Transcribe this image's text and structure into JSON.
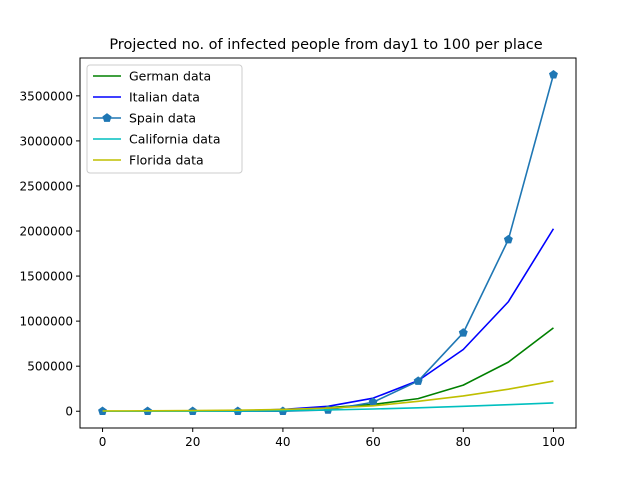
{
  "chart_data": {
    "type": "line",
    "title": "Projected no. of infected people from day1 to 100 per place",
    "xlabel": "",
    "ylabel": "",
    "x": [
      0,
      10,
      20,
      30,
      40,
      50,
      60,
      70,
      80,
      90,
      100
    ],
    "xlim": [
      -5,
      105
    ],
    "ylim": [
      -186000,
      3920000
    ],
    "xticks": [
      "0",
      "20",
      "40",
      "60",
      "80",
      "100"
    ],
    "yticks": [
      "0",
      "500000",
      "1000000",
      "1500000",
      "2000000",
      "2500000",
      "3000000",
      "3500000"
    ],
    "grid": false,
    "legend_position": "top-left",
    "series": [
      {
        "name": "German data",
        "color": "#008000",
        "marker": "none",
        "values": [
          0,
          0,
          1000,
          5000,
          15000,
          40000,
          75000,
          140000,
          290000,
          545000,
          925000
        ]
      },
      {
        "name": "Italian data",
        "color": "#0000ff",
        "marker": "none",
        "values": [
          0,
          0,
          1000,
          5000,
          20000,
          55000,
          145000,
          340000,
          685000,
          1215000,
          2025000
        ]
      },
      {
        "name": "Spain data",
        "color": "#1f77b4",
        "marker": "pentagon",
        "values": [
          0,
          0,
          0,
          0,
          0,
          15000,
          100000,
          335000,
          870000,
          1905000,
          3735000
        ]
      },
      {
        "name": "California data",
        "color": "#00bfbf",
        "marker": "none",
        "values": [
          0,
          0,
          1000,
          3000,
          8000,
          15000,
          25000,
          38000,
          55000,
          73000,
          92000
        ]
      },
      {
        "name": "Florida data",
        "color": "#bfbf00",
        "marker": "none",
        "values": [
          3000,
          5000,
          8000,
          12000,
          20000,
          35000,
          60000,
          110000,
          170000,
          245000,
          335000
        ]
      }
    ]
  }
}
